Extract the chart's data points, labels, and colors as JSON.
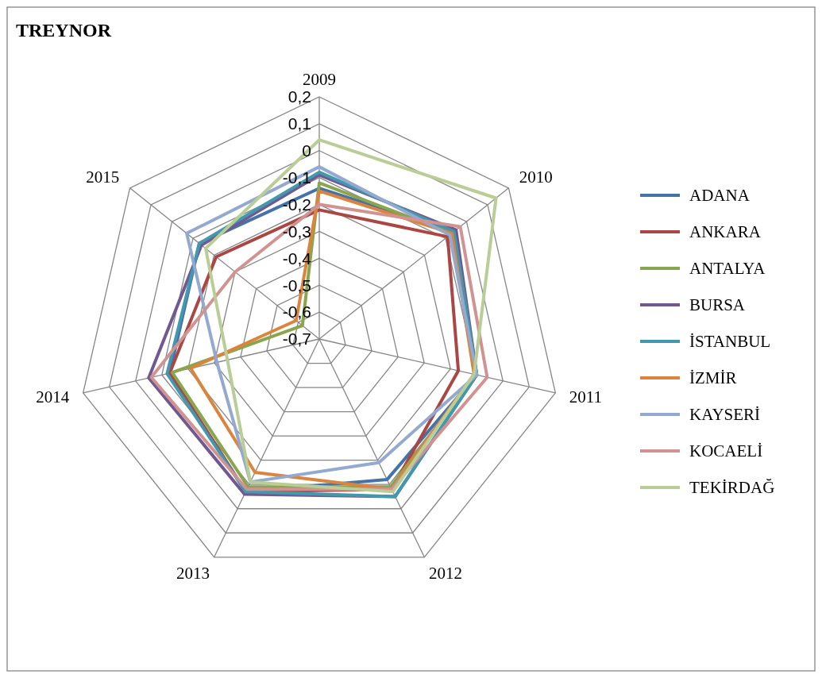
{
  "chart_data": {
    "type": "radar",
    "title": "TREYNOR",
    "categories": [
      "2009",
      "2010",
      "2011",
      "2012",
      "2013",
      "2014",
      "2015"
    ],
    "ylim": [
      -0.7,
      0.2
    ],
    "yticks": [
      {
        "value": -0.7,
        "label": "-0,7"
      },
      {
        "value": -0.6,
        "label": "-0,6"
      },
      {
        "value": -0.5,
        "label": "-0,5"
      },
      {
        "value": -0.4,
        "label": "-0,4"
      },
      {
        "value": -0.3,
        "label": "-0,3"
      },
      {
        "value": -0.2,
        "label": "-0,2"
      },
      {
        "value": -0.1,
        "label": "-0,1"
      },
      {
        "value": 0,
        "label": "0"
      },
      {
        "value": 0.1,
        "label": "0,1"
      },
      {
        "value": 0.2,
        "label": "0,2"
      }
    ],
    "grid": true,
    "legend": "right",
    "series": [
      {
        "name": "ADANA",
        "color": "#4572a7",
        "values": [
          -0.14,
          -0.06,
          -0.1,
          -0.12,
          -0.07,
          -0.13,
          -0.13
        ]
      },
      {
        "name": "ANKARA",
        "color": "#aa4643",
        "values": [
          -0.22,
          -0.09,
          -0.17,
          -0.08,
          -0.07,
          -0.13,
          -0.21
        ]
      },
      {
        "name": "ANTALYA",
        "color": "#89a54e",
        "values": [
          -0.12,
          -0.07,
          -0.1,
          -0.09,
          -0.09,
          -0.14,
          -0.62
        ]
      },
      {
        "name": "BURSA",
        "color": "#71588f",
        "values": [
          -0.09,
          -0.05,
          -0.1,
          -0.05,
          -0.06,
          -0.05,
          -0.14
        ]
      },
      {
        "name": "İSTANBUL",
        "color": "#4198af",
        "values": [
          -0.08,
          -0.06,
          -0.1,
          -0.05,
          -0.07,
          -0.12,
          -0.13
        ]
      },
      {
        "name": "İZMİR",
        "color": "#db843d",
        "values": [
          -0.15,
          -0.07,
          -0.11,
          -0.08,
          -0.15,
          -0.21,
          -0.59
        ]
      },
      {
        "name": "KAYSERİ",
        "color": "#93a9cf",
        "values": [
          -0.06,
          -0.08,
          -0.1,
          -0.19,
          -0.11,
          -0.31,
          -0.07
        ]
      },
      {
        "name": "KOCAELİ",
        "color": "#d19392",
        "values": [
          -0.2,
          -0.03,
          -0.06,
          -0.08,
          -0.08,
          -0.06,
          -0.3
        ]
      },
      {
        "name": "TEKİRDAĞ",
        "color": "#b9cd96",
        "values": [
          0.04,
          0.14,
          -0.11,
          -0.07,
          -0.11,
          -0.35,
          -0.16
        ]
      }
    ]
  }
}
